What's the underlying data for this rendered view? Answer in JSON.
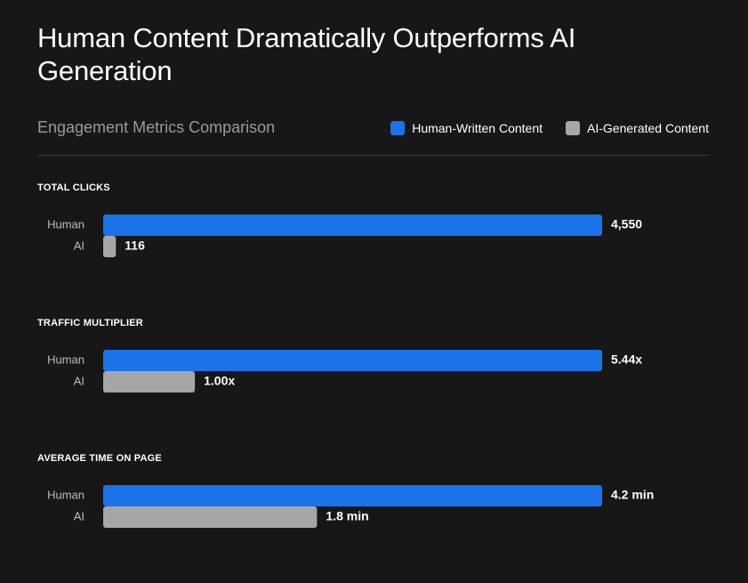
{
  "title": "Human Content Dramatically Outperforms AI Generation",
  "colors": {
    "human": "#1a73e8",
    "ai": "#a6a6a6",
    "background": "#171717"
  },
  "chart_data": {
    "type": "bar",
    "orientation": "horizontal",
    "title": "Human Content Dramatically Outperforms AI Generation",
    "subtitle": "Engagement Metrics Comparison",
    "legend": [
      "Human-Written Content",
      "AI-Generated Content"
    ],
    "legend_placement": "top-right",
    "groups": [
      {
        "metric": "TOTAL CLICKS",
        "bars": [
          {
            "row": "Human",
            "series": "human",
            "value": 4550,
            "label": "4,550"
          },
          {
            "row": "AI",
            "series": "ai",
            "value": 116,
            "label": "116"
          }
        ]
      },
      {
        "metric": "TRAFFIC MULTIPLIER",
        "bars": [
          {
            "row": "Human",
            "series": "human",
            "value": 5.44,
            "label": "5.44x"
          },
          {
            "row": "AI",
            "series": "ai",
            "value": 1.0,
            "label": "1.00x"
          }
        ]
      },
      {
        "metric": "AVERAGE TIME ON PAGE",
        "bars": [
          {
            "row": "Human",
            "series": "human",
            "value": 4.2,
            "label": "4.2 min"
          },
          {
            "row": "AI",
            "series": "ai",
            "value": 1.8,
            "label": "1.8 min"
          }
        ]
      }
    ]
  }
}
